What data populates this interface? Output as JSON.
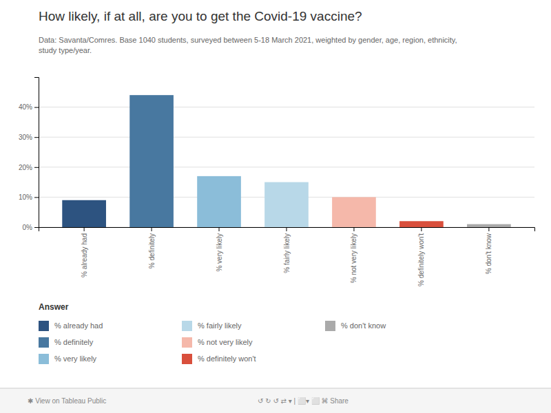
{
  "chart_data": {
    "type": "bar",
    "title": "How likely, if at all, are you to get the Covid-19 vaccine?",
    "subtitle": "Data: Savanta/Comres. Base 1040 students, surveyed between 5-18 March 2021, weighted by gender, age, region, ethnicity,\nstudy type/year.",
    "categories": [
      "% already had",
      "% definitely",
      "% very likely",
      "% fairly likely",
      "% not very likely",
      "% definitely won't",
      "% don't know"
    ],
    "values": [
      9,
      44,
      17,
      15,
      10,
      2,
      1
    ],
    "colors": [
      "#2d5380",
      "#4878a0",
      "#8bbdd9",
      "#b8d8e8",
      "#f5b8aa",
      "#d94f3c",
      "#aaaaaa"
    ],
    "ylim": [
      0,
      50
    ],
    "yticks": [
      {
        "value": 0,
        "label": "0%"
      },
      {
        "value": 10,
        "label": "10%"
      },
      {
        "value": 20,
        "label": "20%"
      },
      {
        "value": 30,
        "label": "30%"
      },
      {
        "value": 40,
        "label": "40%"
      }
    ],
    "grid": true,
    "legend": "bottom",
    "legend_title": "Answer",
    "annotations": [
      "✱  View on Tableau Public",
      "↺  ↻  ↺  ⇄  ▾  |  ⬜▾  ⬜  ⌘  Share"
    ]
  }
}
